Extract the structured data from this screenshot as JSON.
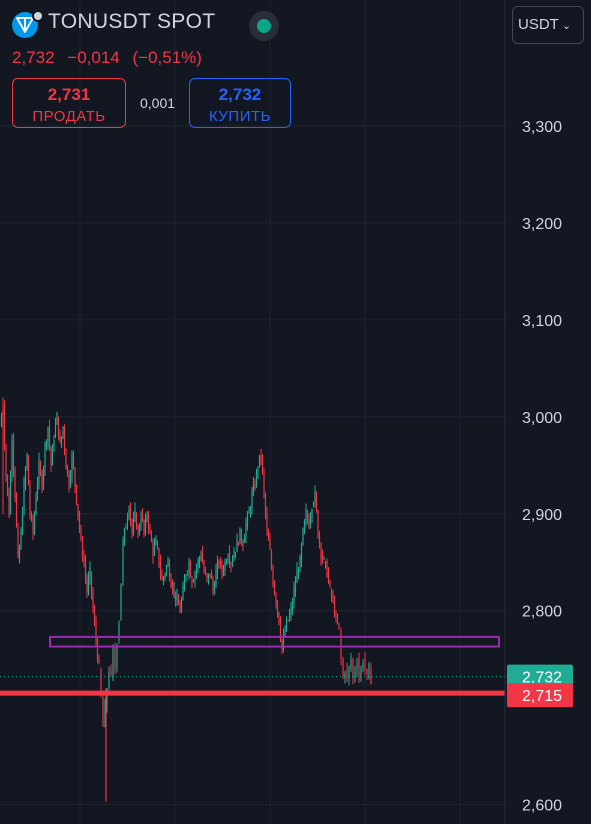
{
  "header": {
    "symbol": "TONUSDT SPOT",
    "last_price": "2,732",
    "change": "−0,014",
    "change_pct": "(−0,51%)",
    "currency": "USDT"
  },
  "trade": {
    "sell_price": "2,731",
    "sell_label": "ПРОДАТЬ",
    "spread": "0,001",
    "buy_price": "2,732",
    "buy_label": "КУПИТЬ"
  },
  "colors": {
    "background": "#131722",
    "up": "#22ab94",
    "down": "#f23645",
    "zone": "#9c27b0",
    "support": "#f23645",
    "axis_text": "#d1d4dc",
    "current_price_label": "#22ab94",
    "support_label": "#f23645"
  },
  "chart_data": {
    "type": "candlestick",
    "y_axis": {
      "ticks": [
        "3,300",
        "3,200",
        "3,100",
        "3,000",
        "2,900",
        "2,800",
        "2,600"
      ],
      "tick_values": [
        3.3,
        3.2,
        3.1,
        3.0,
        2.9,
        2.8,
        2.6
      ],
      "range": [
        2.58,
        3.43
      ],
      "position": "right"
    },
    "current_price": {
      "value": 2.732,
      "label": "2,732"
    },
    "support_level": {
      "value": 2.715,
      "label": "2,715"
    },
    "resistance_zone": {
      "low": 2.763,
      "high": 2.773
    },
    "price_path": [
      [
        0,
        2.99
      ],
      [
        3,
        3.01
      ],
      [
        6,
        2.94
      ],
      [
        9,
        2.9
      ],
      [
        12,
        2.98
      ],
      [
        15,
        2.92
      ],
      [
        18,
        2.85
      ],
      [
        21,
        2.88
      ],
      [
        24,
        2.93
      ],
      [
        27,
        2.96
      ],
      [
        30,
        2.9
      ],
      [
        33,
        2.88
      ],
      [
        36,
        2.92
      ],
      [
        39,
        2.95
      ],
      [
        42,
        2.93
      ],
      [
        45,
        2.97
      ],
      [
        48,
        2.99
      ],
      [
        51,
        2.95
      ],
      [
        54,
        2.98
      ],
      [
        57,
        3.0
      ],
      [
        60,
        2.97
      ],
      [
        63,
        2.99
      ],
      [
        66,
        2.95
      ],
      [
        69,
        2.93
      ],
      [
        72,
        2.96
      ],
      [
        75,
        2.93
      ],
      [
        78,
        2.9
      ],
      [
        81,
        2.87
      ],
      [
        84,
        2.85
      ],
      [
        87,
        2.82
      ],
      [
        90,
        2.84
      ],
      [
        93,
        2.8
      ],
      [
        96,
        2.77
      ],
      [
        99,
        2.74
      ],
      [
        101,
        2.71
      ],
      [
        103,
        2.68
      ],
      [
        105,
        2.7
      ],
      [
        107,
        2.72
      ],
      [
        109,
        2.74
      ],
      [
        111,
        2.73
      ],
      [
        113,
        2.76
      ],
      [
        115,
        2.74
      ],
      [
        117,
        2.77
      ],
      [
        119,
        2.79
      ],
      [
        121,
        2.83
      ],
      [
        123,
        2.87
      ],
      [
        126,
        2.89
      ],
      [
        129,
        2.91
      ],
      [
        132,
        2.88
      ],
      [
        135,
        2.9
      ],
      [
        138,
        2.88
      ],
      [
        141,
        2.9
      ],
      [
        144,
        2.88
      ],
      [
        147,
        2.9
      ],
      [
        150,
        2.88
      ],
      [
        153,
        2.86
      ],
      [
        156,
        2.87
      ],
      [
        159,
        2.85
      ],
      [
        162,
        2.83
      ],
      [
        165,
        2.84
      ],
      [
        168,
        2.85
      ],
      [
        171,
        2.83
      ],
      [
        174,
        2.82
      ],
      [
        177,
        2.81
      ],
      [
        180,
        2.8
      ],
      [
        183,
        2.82
      ],
      [
        186,
        2.84
      ],
      [
        189,
        2.85
      ],
      [
        192,
        2.83
      ],
      [
        195,
        2.84
      ],
      [
        198,
        2.85
      ],
      [
        201,
        2.86
      ],
      [
        204,
        2.84
      ],
      [
        207,
        2.83
      ],
      [
        210,
        2.84
      ],
      [
        213,
        2.82
      ],
      [
        216,
        2.84
      ],
      [
        219,
        2.85
      ],
      [
        222,
        2.84
      ],
      [
        225,
        2.85
      ],
      [
        228,
        2.86
      ],
      [
        231,
        2.85
      ],
      [
        234,
        2.86
      ],
      [
        237,
        2.87
      ],
      [
        240,
        2.88
      ],
      [
        243,
        2.87
      ],
      [
        246,
        2.89
      ],
      [
        249,
        2.9
      ],
      [
        252,
        2.92
      ],
      [
        255,
        2.93
      ],
      [
        258,
        2.95
      ],
      [
        261,
        2.96
      ],
      [
        264,
        2.92
      ],
      [
        267,
        2.88
      ],
      [
        270,
        2.86
      ],
      [
        273,
        2.83
      ],
      [
        276,
        2.81
      ],
      [
        279,
        2.79
      ],
      [
        282,
        2.76
      ],
      [
        285,
        2.78
      ],
      [
        288,
        2.79
      ],
      [
        291,
        2.8
      ],
      [
        294,
        2.82
      ],
      [
        297,
        2.84
      ],
      [
        300,
        2.85
      ],
      [
        303,
        2.88
      ],
      [
        306,
        2.9
      ],
      [
        309,
        2.89
      ],
      [
        312,
        2.91
      ],
      [
        315,
        2.92
      ],
      [
        318,
        2.88
      ],
      [
        321,
        2.86
      ],
      [
        324,
        2.85
      ],
      [
        327,
        2.84
      ],
      [
        330,
        2.82
      ],
      [
        333,
        2.81
      ],
      [
        336,
        2.79
      ],
      [
        339,
        2.78
      ],
      [
        341,
        2.75
      ],
      [
        343,
        2.73
      ],
      [
        345,
        2.74
      ],
      [
        347,
        2.73
      ],
      [
        349,
        2.74
      ],
      [
        351,
        2.75
      ],
      [
        353,
        2.73
      ],
      [
        355,
        2.74
      ],
      [
        357,
        2.75
      ],
      [
        359,
        2.73
      ],
      [
        361,
        2.74
      ],
      [
        363,
        2.75
      ],
      [
        365,
        2.74
      ],
      [
        367,
        2.73
      ],
      [
        369,
        2.74
      ],
      [
        371,
        2.73
      ]
    ]
  }
}
